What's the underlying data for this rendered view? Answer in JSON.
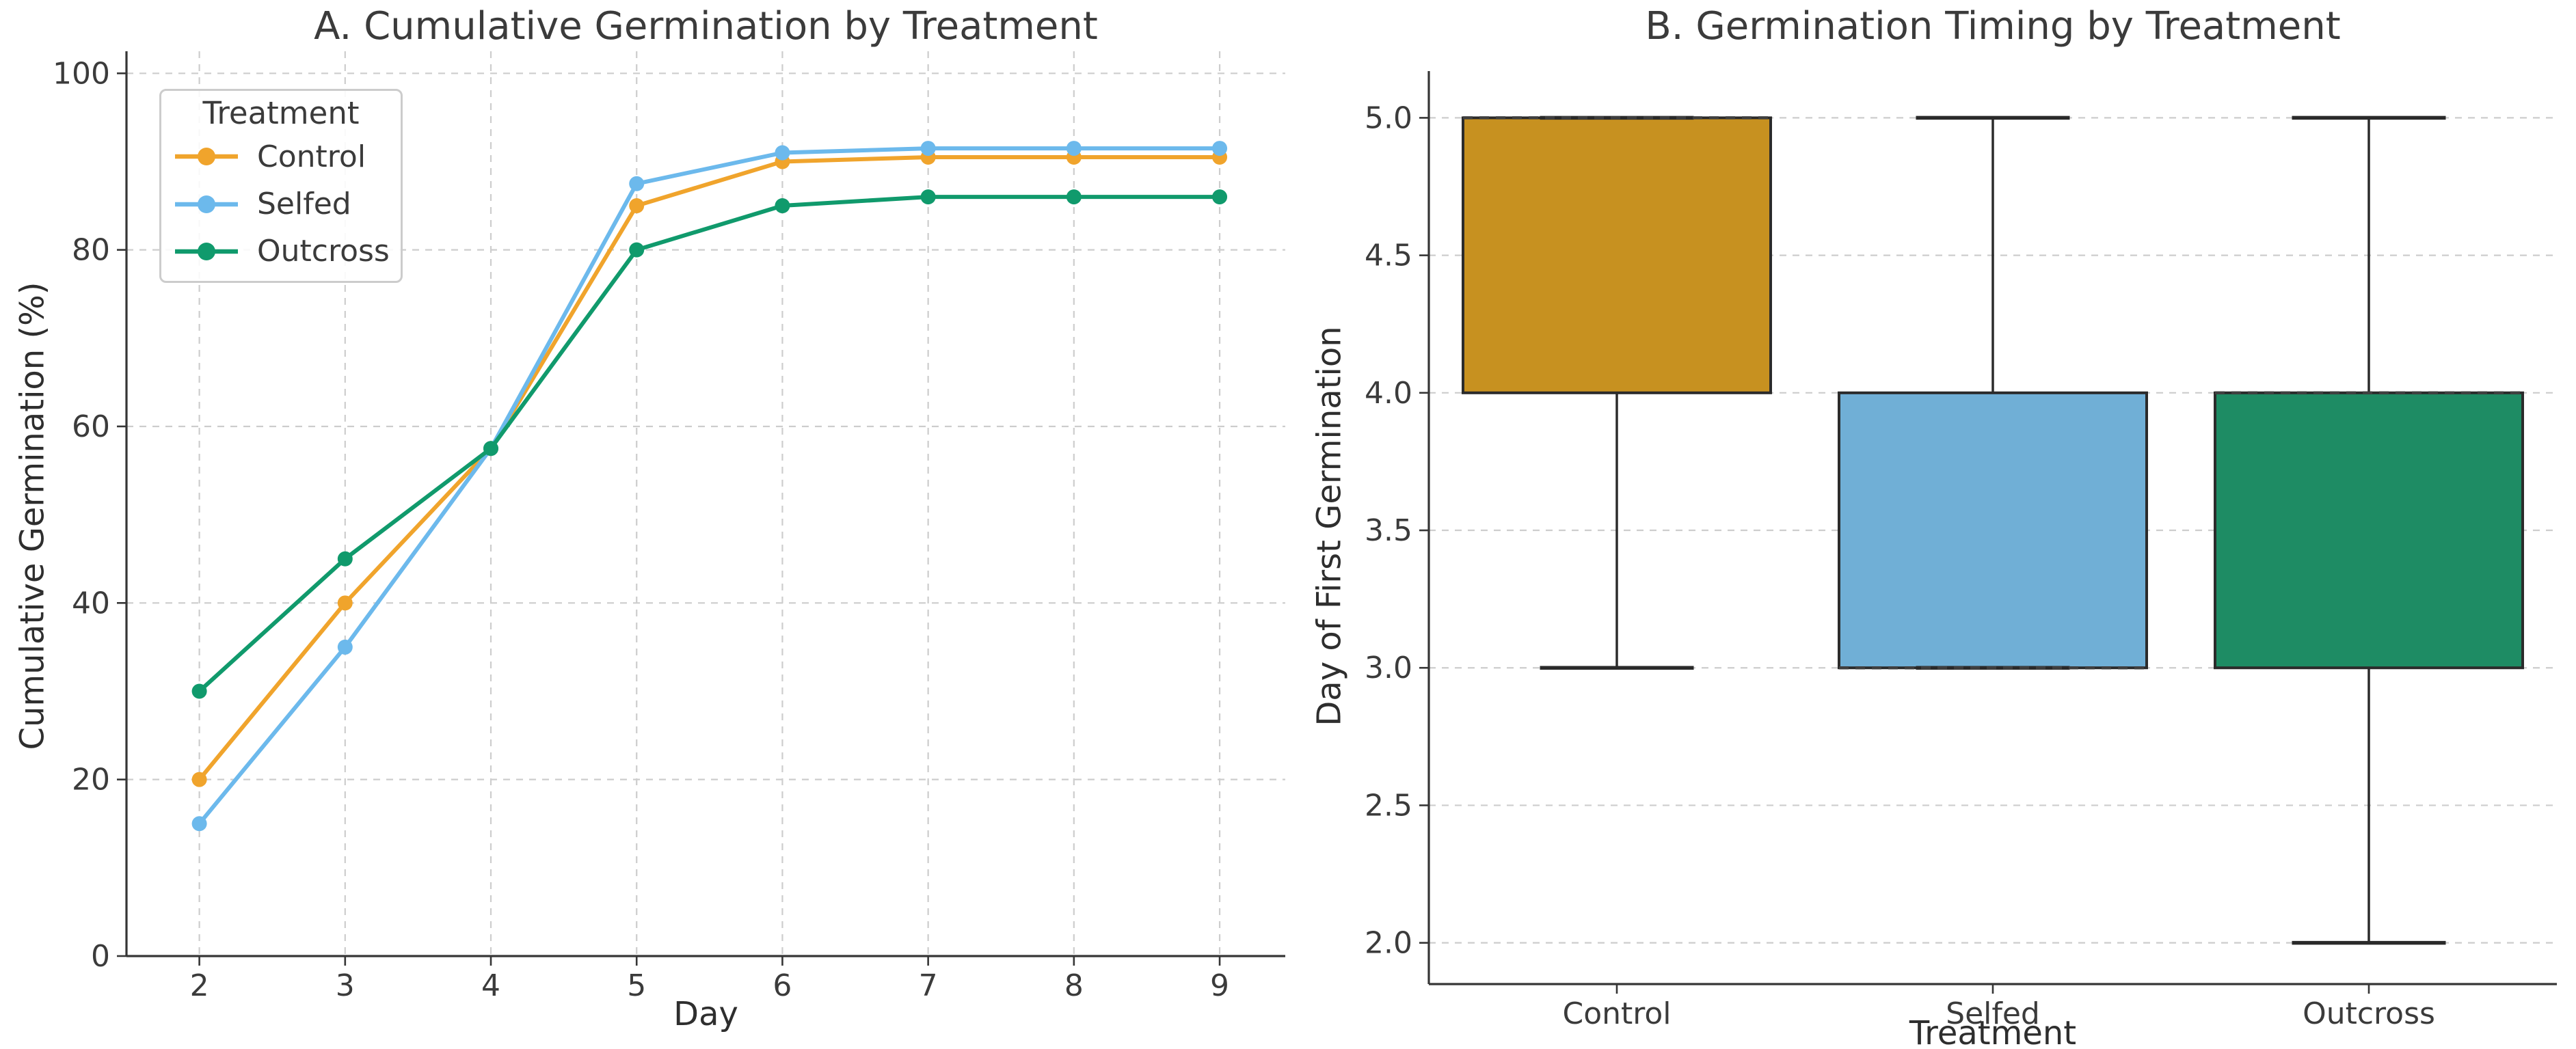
{
  "figure": {
    "background": "#ffffff",
    "text_color": "#3b3b3b",
    "grid_color": "#cdcdcd",
    "spine_color": "#363636"
  },
  "chart_data": [
    {
      "type": "line",
      "title": "A. Cumulative Germination by Treatment",
      "xlabel": "Day",
      "ylabel": "Cumulative Germination (%)",
      "x": [
        2,
        3,
        4,
        5,
        6,
        7,
        8,
        9
      ],
      "series": [
        {
          "name": "Control",
          "color": "#F0A42C",
          "values": [
            20,
            40,
            57.5,
            85,
            90,
            90.5,
            90.5,
            90.5
          ]
        },
        {
          "name": "Selfed",
          "color": "#6CB9EC",
          "values": [
            15,
            35,
            57.5,
            87.5,
            91,
            91.5,
            91.5,
            91.5
          ]
        },
        {
          "name": "Outcross",
          "color": "#109A6C",
          "values": [
            30,
            45,
            57.5,
            80,
            85,
            86,
            86,
            86
          ]
        }
      ],
      "legend_title": "Treatment",
      "legend_position": "upper left",
      "xlim": [
        1.5,
        9.45
      ],
      "ylim": [
        0,
        102.5
      ],
      "yticks": [
        0,
        20,
        40,
        60,
        80,
        100
      ],
      "xticks": [
        2,
        3,
        4,
        5,
        6,
        7,
        8,
        9
      ],
      "grid": "both",
      "grid_style": "dashed"
    },
    {
      "type": "box",
      "title": "B. Germination Timing by Treatment",
      "xlabel": "Treatment",
      "ylabel": "Day of First Germination",
      "categories": [
        "Control",
        "Selfed",
        "Outcross"
      ],
      "yticks": [
        2.0,
        2.5,
        3.0,
        3.5,
        4.0,
        4.5,
        5.0
      ],
      "ylim": [
        1.85,
        5.17
      ],
      "grid": "y",
      "grid_style": "dashed",
      "boxes": [
        {
          "label": "Control",
          "color": "#C79120",
          "whisker_low": 3.0,
          "q1": 4.0,
          "median": 5.0,
          "q3": 5.0,
          "whisker_high": 5.0
        },
        {
          "label": "Selfed",
          "color": "#70AFD6",
          "whisker_low": 3.0,
          "q1": 3.0,
          "median": 3.0,
          "q3": 4.0,
          "whisker_high": 5.0
        },
        {
          "label": "Outcross",
          "color": "#1E8C64",
          "whisker_low": 2.0,
          "q1": 3.0,
          "median": 4.0,
          "q3": 4.0,
          "whisker_high": 5.0
        }
      ]
    }
  ]
}
